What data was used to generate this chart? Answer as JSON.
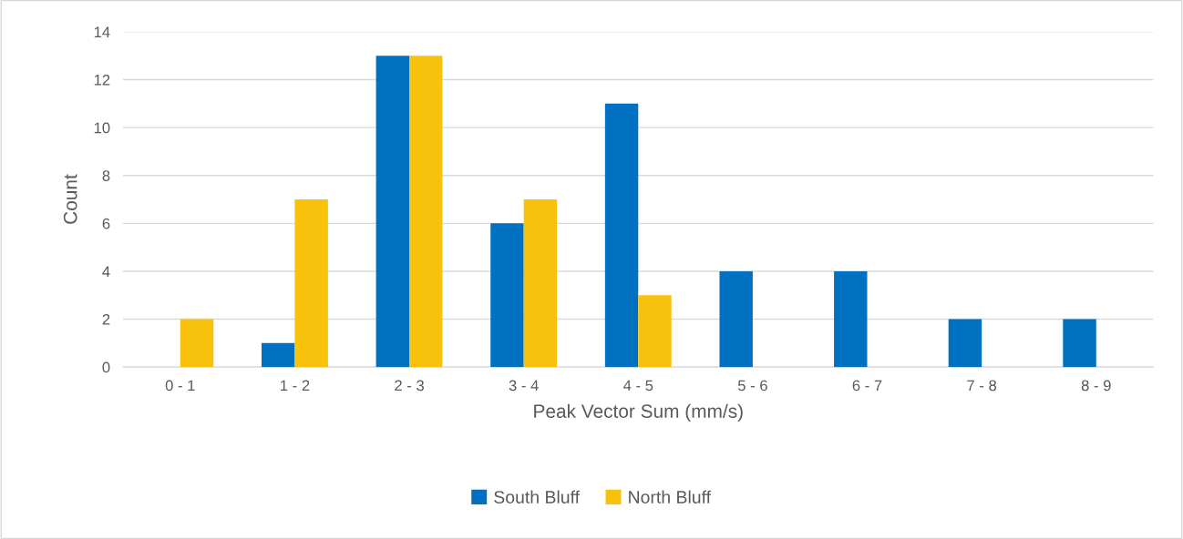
{
  "chart_data": {
    "type": "bar",
    "xlabel": "Peak Vector Sum (mm/s)",
    "ylabel": "Count",
    "categories": [
      "0 - 1",
      "1 - 2",
      "2 - 3",
      "3 - 4",
      "4 - 5",
      "5 - 6",
      "6 - 7",
      "7 - 8",
      "8 - 9"
    ],
    "series": [
      {
        "name": "South Bluff",
        "color": "#0070c0",
        "values": [
          0,
          1,
          13,
          6,
          11,
          4,
          4,
          2,
          2
        ]
      },
      {
        "name": "North Bluff",
        "color": "#f8c20c",
        "values": [
          2,
          7,
          13,
          7,
          3,
          0,
          0,
          0,
          0
        ]
      }
    ],
    "ylim": [
      0,
      14
    ],
    "yticks": [
      0,
      2,
      4,
      6,
      8,
      10,
      12,
      14
    ],
    "grid": "y",
    "legend": "bottom"
  }
}
